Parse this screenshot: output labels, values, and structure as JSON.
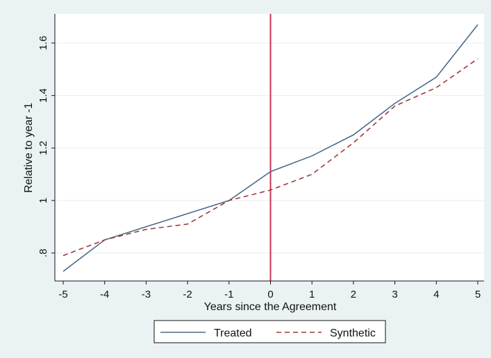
{
  "chart_data": {
    "type": "line",
    "title": "",
    "xlabel": "Years since the Agreement",
    "ylabel": "Relative to year -1",
    "x": [
      -5,
      -4,
      -3,
      -2,
      -1,
      0,
      1,
      2,
      3,
      4,
      5
    ],
    "xticks": [
      -5,
      -4,
      -3,
      -2,
      -1,
      0,
      1,
      2,
      3,
      4,
      5
    ],
    "yticks": [
      0.8,
      1,
      1.2,
      1.4,
      1.6
    ],
    "ytick_labels": [
      ".8",
      "1",
      "1.2",
      "1.4",
      "1.6"
    ],
    "xlim": [
      -5,
      5
    ],
    "ylim": [
      0.7,
      1.7
    ],
    "grid": "horizontal",
    "legend_position": "bottom",
    "reference_line": {
      "x": 0,
      "color": "#cc3355"
    },
    "series": [
      {
        "name": "Treated",
        "color": "#4a6b8a",
        "dash": "solid",
        "values": [
          0.73,
          0.85,
          0.9,
          0.95,
          1.0,
          1.11,
          1.17,
          1.25,
          1.37,
          1.47,
          1.67
        ]
      },
      {
        "name": "Synthetic",
        "color": "#9e3a3a",
        "dash": "dashed",
        "values": [
          0.79,
          0.85,
          0.89,
          0.91,
          1.0,
          1.04,
          1.1,
          1.22,
          1.36,
          1.43,
          1.54
        ]
      }
    ],
    "colors": {
      "outer_background": "#eaf2f3",
      "plot_background": "#ffffff",
      "grid": "#e8eef0"
    }
  }
}
